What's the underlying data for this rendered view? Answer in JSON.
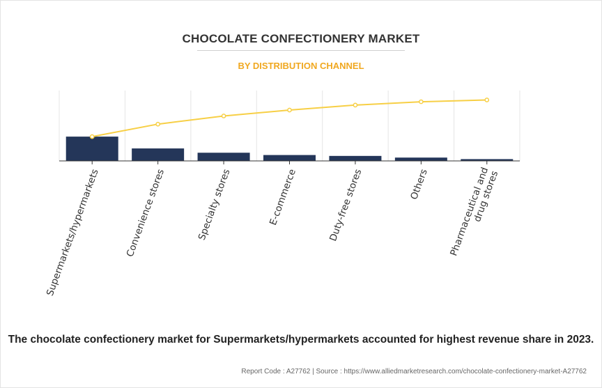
{
  "header": {
    "title": "CHOCOLATE CONFECTIONERY MARKET",
    "subtitle": "BY DISTRIBUTION CHANNEL"
  },
  "chart_data": {
    "type": "bar",
    "title": "CHOCOLATE CONFECTIONERY MARKET",
    "subtitle": "BY DISTRIBUTION CHANNEL",
    "categories": [
      "Supermarkets/hypermarkets",
      "Convenience stores",
      "Specialty stores",
      "E-commerce",
      "Duty-free stores",
      "Others",
      "Pharmaceutical and drug stores"
    ],
    "category_label_lines": [
      [
        "Supermarkets/hypermarkets"
      ],
      [
        "Convenience stores"
      ],
      [
        "Specialty stores"
      ],
      [
        "E-commerce"
      ],
      [
        "Duty-free stores"
      ],
      [
        "Others"
      ],
      [
        "Pharmaceutical and",
        "drug stores"
      ]
    ],
    "series": [
      {
        "type": "bar",
        "values": [
          38,
          19.5,
          12.8,
          9.2,
          7.8,
          5.2,
          2.8
        ]
      },
      {
        "type": "line",
        "values": [
          38,
          57.5,
          70.3,
          79.5,
          87.3,
          92.5,
          95.3
        ]
      }
    ],
    "ylim": [
      0,
      110
    ],
    "xlabel": "",
    "ylabel": "",
    "grid": "vertical",
    "legend": "none",
    "colors": {
      "bar": "#243659",
      "line": "#f7cf45",
      "grid": "#e4e4e4"
    }
  },
  "footer": {
    "caption": "The chocolate confectionery market for Supermarkets/hypermarkets accounted for highest revenue share in 2023.",
    "source": "Report Code : A27762  |  Source : https://www.alliedmarketresearch.com/chocolate-confectionery-market-A27762"
  }
}
